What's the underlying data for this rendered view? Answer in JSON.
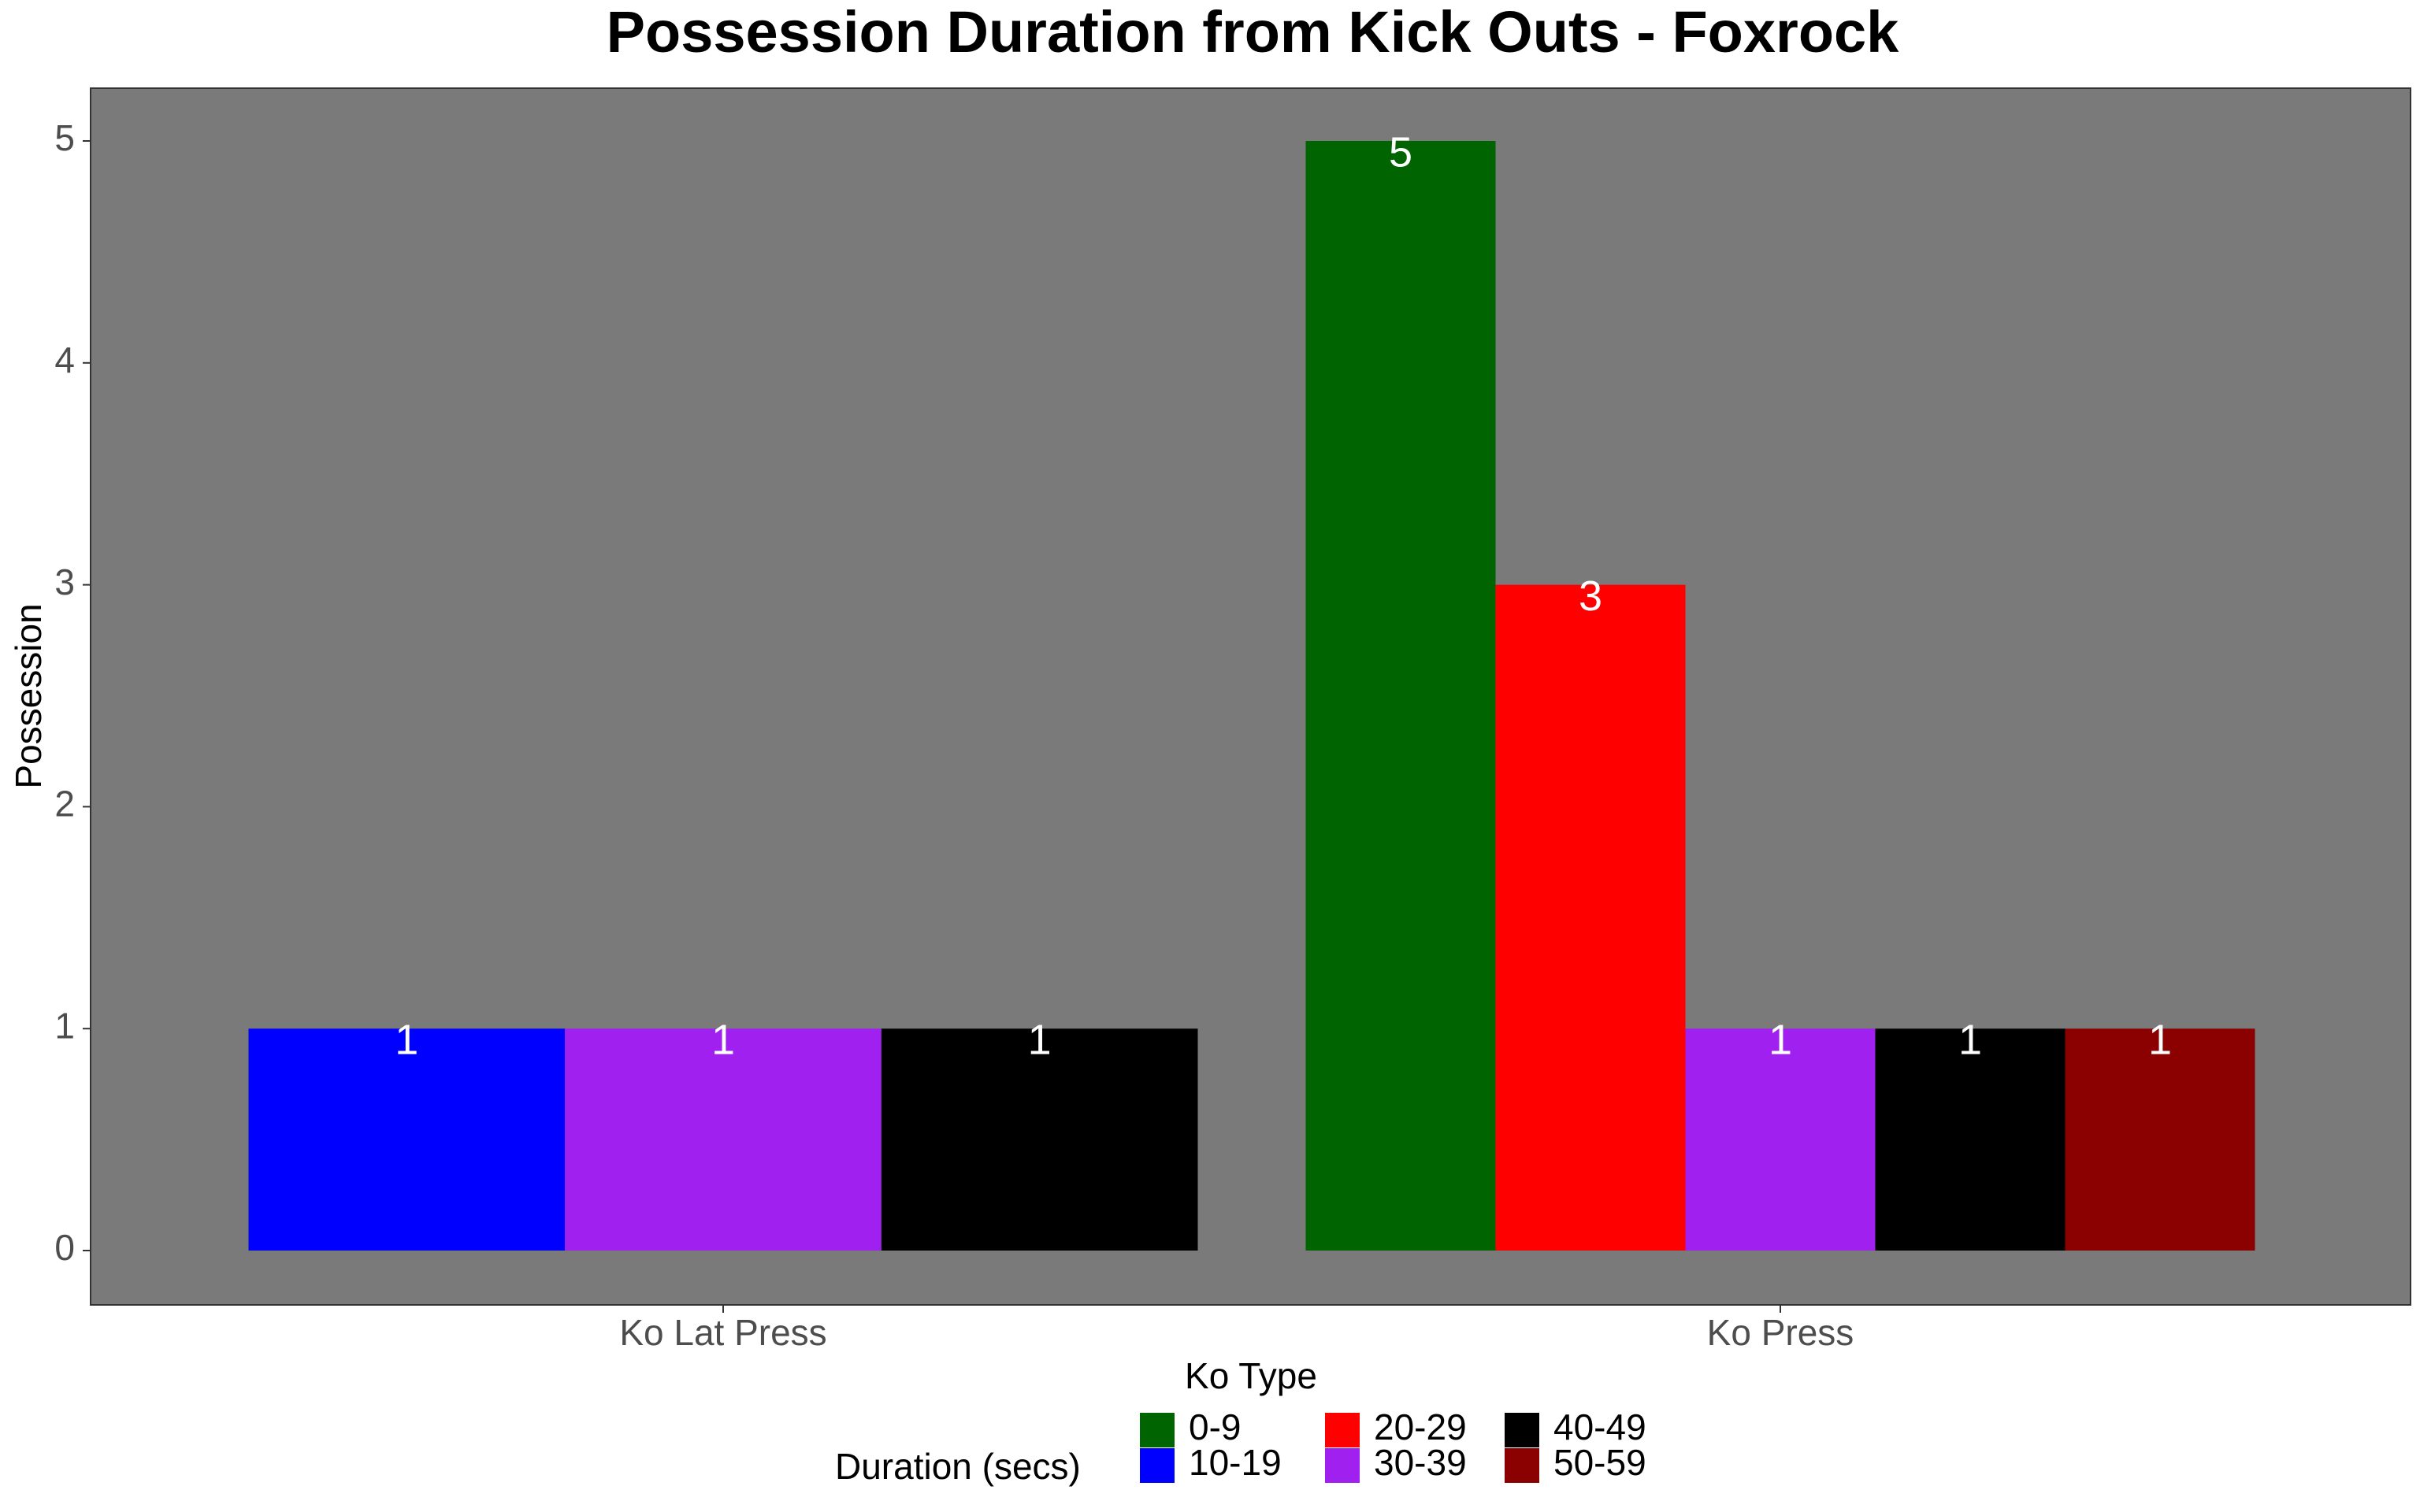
{
  "chart_data": {
    "type": "bar",
    "title": "Possession Duration from Kick Outs - Foxrock",
    "xlabel": "Ko Type",
    "ylabel": "Possession",
    "ylim": [
      0,
      5.25
    ],
    "yticks": [
      0,
      1,
      2,
      3,
      4,
      5
    ],
    "grid": false,
    "legend_position": "bottom",
    "legend_title": "Duration (secs)",
    "panel_color": "#7a7a7a",
    "categories": [
      "Ko Lat Press",
      "Ko Press"
    ],
    "series": [
      {
        "name": "0-9",
        "color": "#006400"
      },
      {
        "name": "10-19",
        "color": "#0000ff"
      },
      {
        "name": "20-29",
        "color": "#ff0000"
      },
      {
        "name": "30-39",
        "color": "#a020f0"
      },
      {
        "name": "40-49",
        "color": "#000000"
      },
      {
        "name": "50-59",
        "color": "#8b0000"
      }
    ],
    "groups": [
      {
        "category": "Ko Lat Press",
        "bars": [
          {
            "series": "10-19",
            "value": 1,
            "label": "1"
          },
          {
            "series": "30-39",
            "value": 1,
            "label": "1"
          },
          {
            "series": "40-49",
            "value": 1,
            "label": "1"
          }
        ]
      },
      {
        "category": "Ko Press",
        "bars": [
          {
            "series": "0-9",
            "value": 5,
            "label": "5"
          },
          {
            "series": "20-29",
            "value": 3,
            "label": "3"
          },
          {
            "series": "30-39",
            "value": 1,
            "label": "1"
          },
          {
            "series": "40-49",
            "value": 1,
            "label": "1"
          },
          {
            "series": "50-59",
            "value": 1,
            "label": "1"
          }
        ]
      }
    ]
  }
}
